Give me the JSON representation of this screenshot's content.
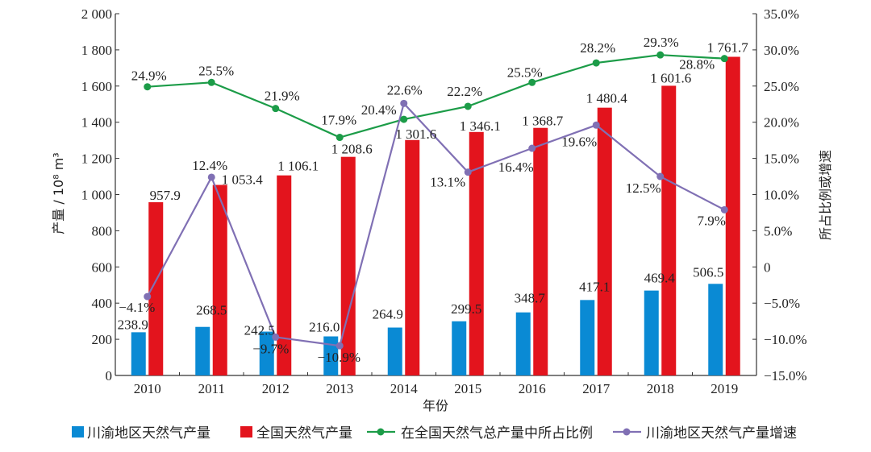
{
  "chart_data": {
    "type": "bar",
    "categories": [
      "2010",
      "2011",
      "2012",
      "2013",
      "2014",
      "2015",
      "2016",
      "2017",
      "2018",
      "2019"
    ],
    "xlabel": "年份",
    "ylabel": "产量 / 10⁸ m³",
    "ylabel_right": "所占比例或增速",
    "ylim": [
      0,
      2000
    ],
    "ylim_right": [
      -15,
      35
    ],
    "yticks": [
      "0",
      "200",
      "400",
      "600",
      "800",
      "1 000",
      "1 200",
      "1 400",
      "1 600",
      "1 800",
      "2 000"
    ],
    "yticks_right": [
      "−15.0%",
      "−10.0%",
      "−5.0%",
      "0",
      "5.0%",
      "10.0%",
      "15.0%",
      "20.0%",
      "25.0%",
      "30.0%",
      "35.0%"
    ],
    "grid": false,
    "legend": "bottom",
    "series": [
      {
        "name": "川渝地区天然气产量",
        "type": "bar",
        "axis": "left",
        "color": "#0a8ad4",
        "values": [
          238.9,
          268.5,
          242.5,
          216.0,
          264.9,
          299.5,
          348.7,
          417.1,
          469.4,
          506.5
        ],
        "labels": [
          "238.9",
          "268.5",
          "242.5",
          "216.0",
          "264.9",
          "299.5",
          "348.7",
          "417.1",
          "469.4",
          "506.5"
        ]
      },
      {
        "name": "全国天然气产量",
        "type": "bar",
        "axis": "left",
        "color": "#e3141d",
        "values": [
          957.9,
          1053.4,
          1106.1,
          1208.6,
          1301.6,
          1346.1,
          1368.7,
          1480.4,
          1601.6,
          1761.7
        ],
        "labels": [
          "957.9",
          "1 053.4",
          "1 106.1",
          "1 208.6",
          "1 301.6",
          "1 346.1",
          "1 368.7",
          "1 480.4",
          "1 601.6",
          "1 761.7"
        ]
      },
      {
        "name": "在全国天然气总产量中所占比例",
        "type": "line",
        "axis": "right",
        "color": "#1c9c48",
        "values": [
          24.9,
          25.5,
          21.9,
          17.9,
          20.4,
          22.2,
          25.5,
          28.2,
          29.3,
          28.8
        ],
        "labels": [
          "24.9%",
          "25.5%",
          "21.9%",
          "17.9%",
          "20.4%",
          "22.2%",
          "25.5%",
          "28.2%",
          "29.3%",
          "28.8%"
        ]
      },
      {
        "name": "川渝地区天然气产量增速",
        "type": "line",
        "axis": "right",
        "color": "#8070b4",
        "values": [
          -4.1,
          12.4,
          -9.7,
          -10.9,
          22.6,
          13.1,
          16.4,
          19.6,
          12.5,
          7.9
        ],
        "labels": [
          "−4.1%",
          "12.4%",
          "−9.7%",
          "−10.9%",
          "22.6%",
          "13.1%",
          "16.4%",
          "19.6%",
          "12.5%",
          "7.9%"
        ]
      }
    ]
  }
}
